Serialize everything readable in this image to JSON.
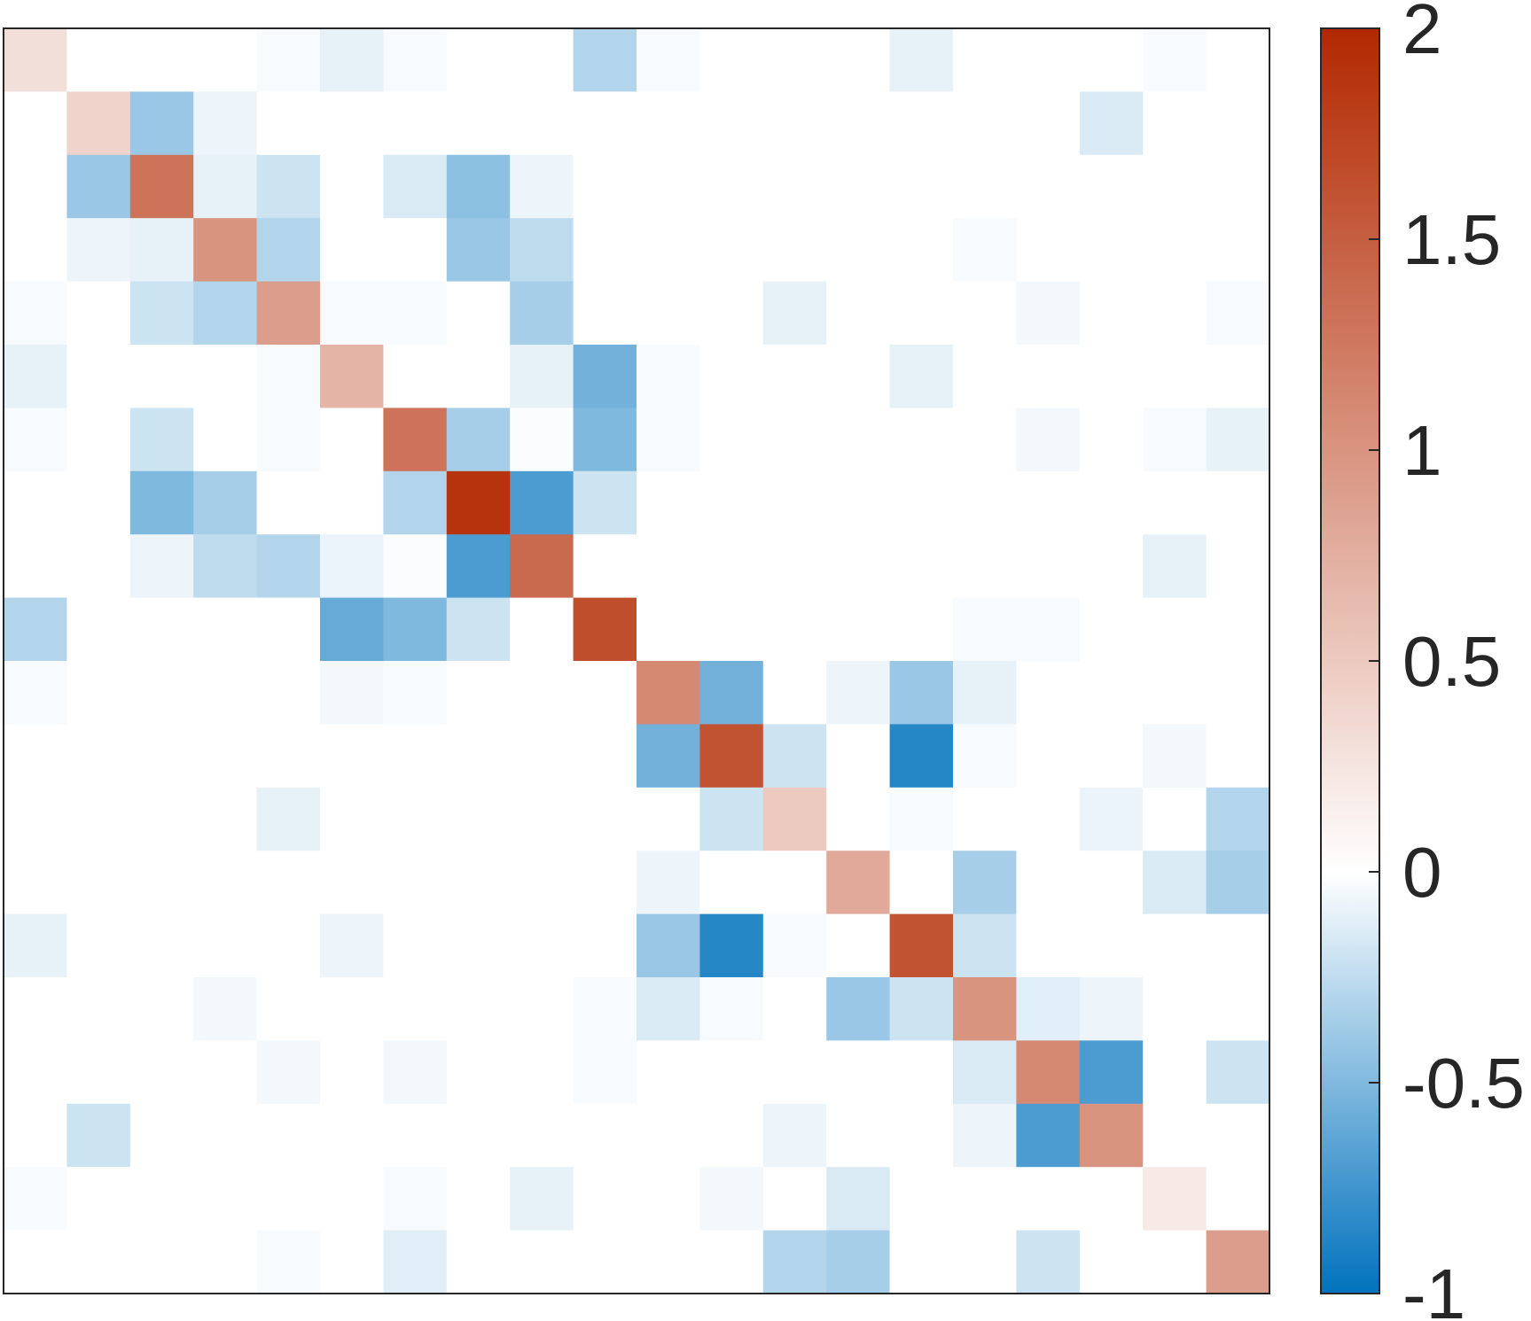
{
  "chart_data": {
    "type": "heatmap",
    "title": "",
    "xlabel": "",
    "ylabel": "",
    "rows": 20,
    "cols": 20,
    "matrix": [
      [
        0.3,
        0,
        0,
        0,
        -0.03,
        -0.1,
        -0.03,
        0,
        0,
        -0.3,
        -0.03,
        0,
        0,
        0,
        -0.1,
        0,
        0,
        0,
        -0.03,
        0
      ],
      [
        0,
        0.4,
        -0.4,
        -0.07,
        0,
        0,
        0,
        0,
        0,
        0,
        0,
        0,
        0,
        0,
        0,
        0,
        0,
        -0.15,
        0,
        0
      ],
      [
        0,
        -0.4,
        1.3,
        -0.1,
        -0.2,
        0,
        -0.15,
        -0.45,
        -0.07,
        0,
        0,
        0,
        0,
        0,
        0,
        0,
        0,
        0,
        0,
        0
      ],
      [
        0,
        -0.07,
        -0.1,
        1.0,
        -0.3,
        0,
        0,
        -0.4,
        -0.25,
        0,
        0,
        0,
        0,
        0,
        0,
        -0.03,
        0,
        0,
        0,
        0
      ],
      [
        -0.03,
        0,
        -0.2,
        -0.3,
        0.9,
        -0.03,
        -0.03,
        0,
        -0.35,
        0,
        0,
        0,
        -0.1,
        0,
        0,
        0,
        -0.05,
        0,
        0,
        -0.03
      ],
      [
        -0.1,
        0,
        0,
        0,
        -0.03,
        0.7,
        0,
        0,
        -0.1,
        -0.55,
        -0.03,
        0,
        0,
        0,
        -0.1,
        0,
        0,
        0,
        0,
        0
      ],
      [
        -0.03,
        0,
        -0.2,
        0,
        -0.03,
        0,
        1.3,
        -0.35,
        -0.02,
        -0.5,
        -0.03,
        0,
        0,
        0,
        0,
        0,
        -0.05,
        0,
        -0.03,
        -0.1
      ],
      [
        0,
        0,
        -0.5,
        -0.35,
        0,
        0,
        -0.3,
        1.9,
        -0.7,
        -0.2,
        0,
        0,
        0,
        0,
        0,
        0,
        0,
        0,
        0,
        0
      ],
      [
        0,
        0,
        -0.07,
        -0.25,
        -0.3,
        -0.08,
        -0.02,
        -0.7,
        1.4,
        0,
        0,
        0,
        0,
        0,
        0,
        0,
        0,
        0,
        -0.1,
        0
      ],
      [
        -0.3,
        0,
        0,
        0,
        0,
        -0.6,
        -0.5,
        -0.2,
        0,
        1.65,
        0,
        0,
        0,
        0,
        0,
        -0.03,
        -0.03,
        0,
        0,
        0
      ],
      [
        -0.03,
        0,
        0,
        0,
        0,
        -0.05,
        -0.03,
        0,
        0,
        0,
        1.1,
        -0.55,
        0,
        -0.07,
        -0.4,
        -0.1,
        0,
        0,
        0,
        0
      ],
      [
        0,
        0,
        0,
        0,
        0,
        0,
        0,
        0,
        0,
        0,
        -0.55,
        1.6,
        -0.2,
        0,
        -0.85,
        -0.03,
        0,
        0,
        -0.05,
        0
      ],
      [
        0,
        0,
        0,
        0,
        -0.1,
        0,
        0,
        0,
        0,
        0,
        0,
        -0.2,
        0.5,
        0,
        -0.03,
        0,
        0,
        -0.08,
        0,
        -0.3
      ],
      [
        0,
        0,
        0,
        0,
        0,
        0,
        0,
        0,
        0,
        0,
        -0.07,
        0,
        0,
        0.8,
        0,
        -0.35,
        0,
        0,
        -0.15,
        -0.35
      ],
      [
        -0.1,
        0,
        0,
        0,
        0,
        -0.07,
        0,
        0,
        0,
        0,
        -0.4,
        -0.85,
        -0.03,
        0,
        1.6,
        -0.2,
        0,
        0,
        0,
        0
      ],
      [
        0,
        0,
        0,
        -0.05,
        0,
        0,
        0,
        0,
        0,
        -0.03,
        -0.15,
        -0.03,
        0,
        -0.4,
        -0.2,
        1.0,
        -0.12,
        -0.07,
        0,
        0
      ],
      [
        0,
        0,
        0,
        0,
        -0.05,
        0,
        -0.05,
        0,
        0,
        -0.03,
        0,
        0,
        0,
        0,
        0,
        -0.15,
        1.1,
        -0.7,
        0,
        -0.2
      ],
      [
        0,
        -0.2,
        0,
        0,
        0,
        0,
        0,
        0,
        0,
        0,
        0,
        0,
        -0.07,
        0,
        0,
        -0.07,
        -0.7,
        1.0,
        0,
        0
      ],
      [
        -0.03,
        0,
        0,
        0,
        0,
        0,
        -0.03,
        0,
        -0.1,
        0,
        0,
        -0.05,
        0,
        -0.15,
        0,
        0,
        0,
        0,
        0.2,
        0
      ],
      [
        0,
        0,
        0,
        0,
        -0.03,
        0,
        -0.12,
        0,
        0,
        0,
        0,
        0,
        -0.3,
        -0.35,
        0,
        0,
        -0.2,
        0,
        0,
        0.9
      ]
    ],
    "colorbar": {
      "range": [
        -1,
        2
      ],
      "ticks": [
        -1,
        -0.5,
        0,
        0.5,
        1,
        1.5,
        2
      ],
      "tick_labels": [
        "-1",
        "-0.5",
        "0",
        "0.5",
        "1",
        "1.5",
        "2"
      ],
      "colormap": {
        "low_color": "#0072BD",
        "mid_color": "#FFFFFF",
        "high_color": "#B22800"
      }
    },
    "grid": false,
    "legend": "none"
  }
}
